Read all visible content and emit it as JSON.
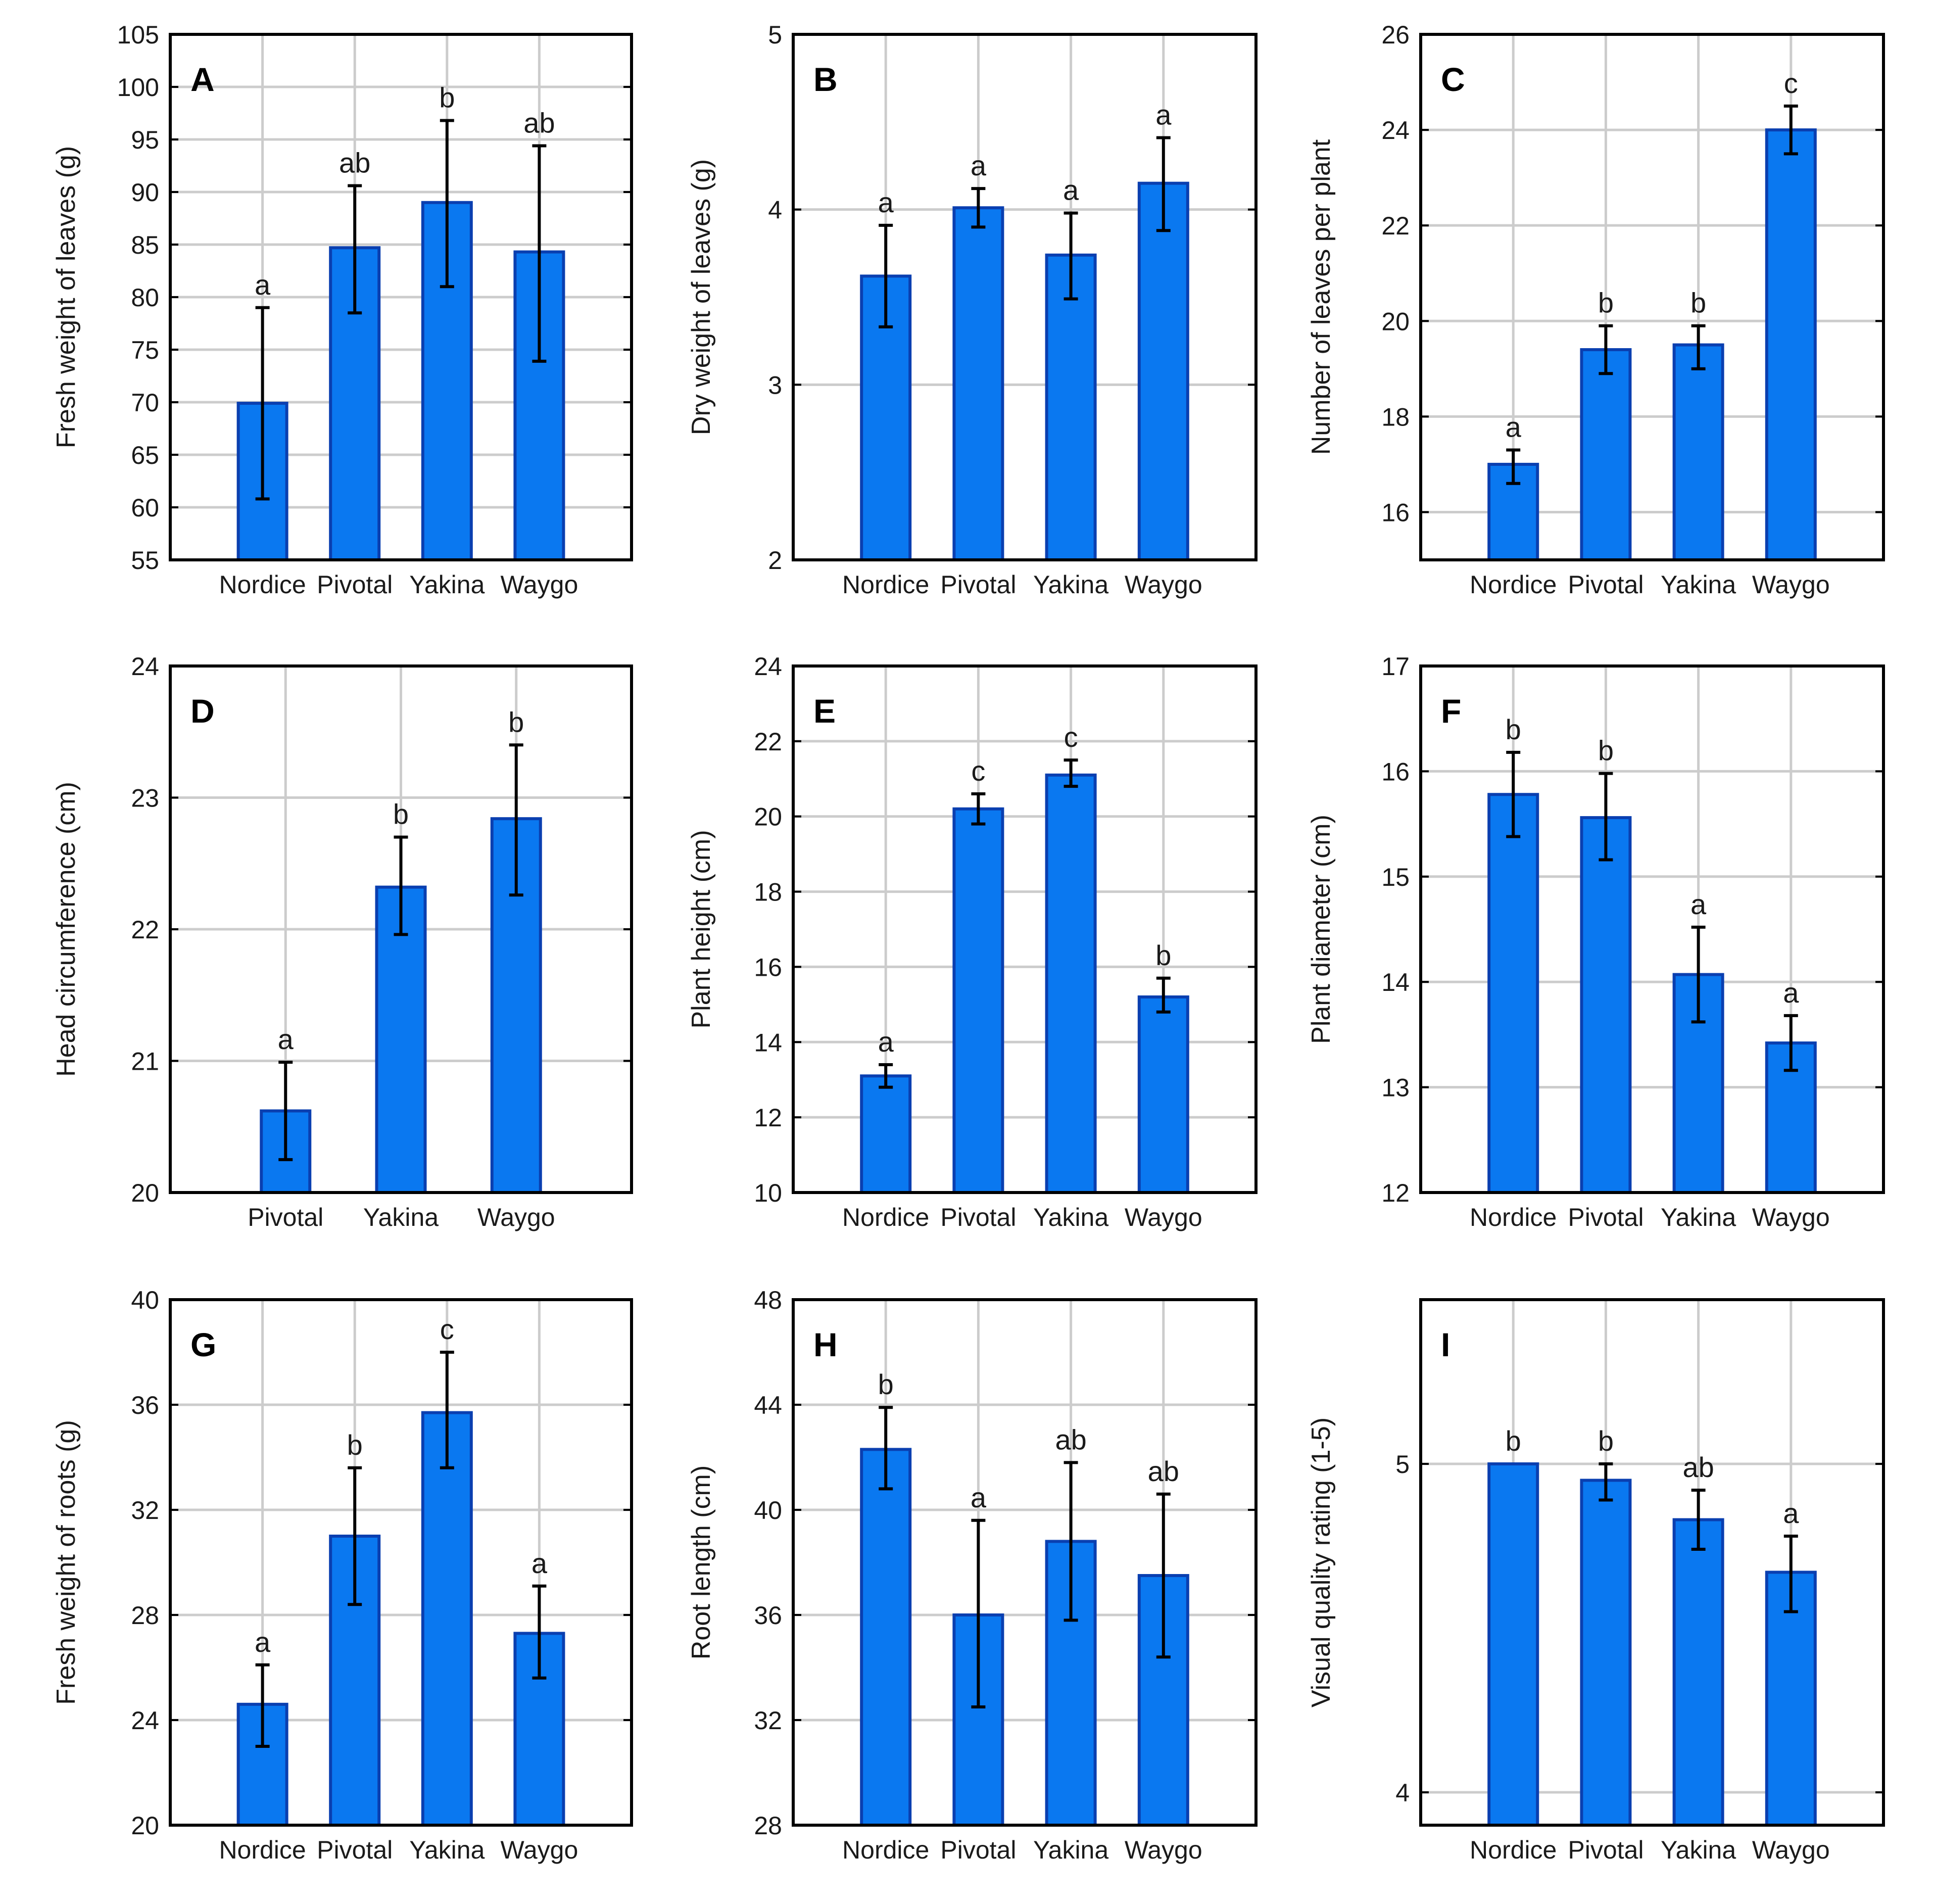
{
  "colors": {
    "bar_fill": "#0a78f0",
    "bar_edge": "#0a3fb0",
    "grid": "#cccccc",
    "axis": "#000000",
    "error": "#000000"
  },
  "chart_data": [
    {
      "type": "bar",
      "panel": "A",
      "ylabel": "Fresh weight of leaves (g)",
      "categories": [
        "Nordice",
        "Pivotal",
        "Yakina",
        "Waygo"
      ],
      "values": [
        69.9,
        84.7,
        89.0,
        84.3
      ],
      "error_low": [
        60.8,
        78.5,
        81.0,
        73.9
      ],
      "error_high": [
        79.0,
        90.6,
        96.8,
        94.4
      ],
      "letters": [
        "a",
        "ab",
        "b",
        "ab"
      ],
      "ylim": [
        55,
        105
      ],
      "yticks": [
        55,
        60,
        65,
        70,
        75,
        80,
        85,
        90,
        95,
        100,
        105
      ],
      "grid": true
    },
    {
      "type": "bar",
      "panel": "B",
      "ylabel": "Dry weight of leaves (g)",
      "categories": [
        "Nordice",
        "Pivotal",
        "Yakina",
        "Waygo"
      ],
      "values": [
        3.62,
        4.01,
        3.74,
        4.15
      ],
      "error_low": [
        3.33,
        3.9,
        3.49,
        3.88
      ],
      "error_high": [
        3.91,
        4.12,
        3.98,
        4.41
      ],
      "letters": [
        "a",
        "a",
        "a",
        "a"
      ],
      "ylim": [
        2,
        5
      ],
      "yticks": [
        2,
        3,
        4,
        5
      ],
      "grid": true
    },
    {
      "type": "bar",
      "panel": "C",
      "ylabel": "Number of leaves per plant",
      "categories": [
        "Nordice",
        "Pivotal",
        "Yakina",
        "Waygo"
      ],
      "values": [
        17.0,
        19.4,
        19.5,
        24.0
      ],
      "error_low": [
        16.6,
        18.9,
        19.0,
        23.5
      ],
      "error_high": [
        17.3,
        19.9,
        19.9,
        24.5
      ],
      "letters": [
        "a",
        "b",
        "b",
        "c"
      ],
      "ylim": [
        15,
        26
      ],
      "yticks": [
        16,
        18,
        20,
        22,
        24,
        26
      ],
      "grid": true
    },
    {
      "type": "bar",
      "panel": "D",
      "ylabel": "Head circumference (cm)",
      "categories": [
        "Pivotal",
        "Yakina",
        "Waygo"
      ],
      "values": [
        20.62,
        22.32,
        22.84
      ],
      "error_low": [
        20.25,
        21.96,
        22.26
      ],
      "error_high": [
        20.99,
        22.7,
        23.4
      ],
      "letters": [
        "a",
        "b",
        "b"
      ],
      "ylim": [
        20,
        24
      ],
      "yticks": [
        20,
        21,
        22,
        23,
        24
      ],
      "grid": true
    },
    {
      "type": "bar",
      "panel": "E",
      "ylabel": "Plant height (cm)",
      "categories": [
        "Nordice",
        "Pivotal",
        "Yakina",
        "Waygo"
      ],
      "values": [
        13.1,
        20.2,
        21.1,
        15.2
      ],
      "error_low": [
        12.8,
        19.8,
        20.8,
        14.8
      ],
      "error_high": [
        13.4,
        20.6,
        21.5,
        15.7
      ],
      "letters": [
        "a",
        "c",
        "c",
        "b"
      ],
      "ylim": [
        10,
        24
      ],
      "yticks": [
        10,
        12,
        14,
        16,
        18,
        20,
        22,
        24
      ],
      "grid": true
    },
    {
      "type": "bar",
      "panel": "F",
      "ylabel": "Plant diameter (cm)",
      "categories": [
        "Nordice",
        "Pivotal",
        "Yakina",
        "Waygo"
      ],
      "values": [
        15.78,
        15.56,
        14.07,
        13.42
      ],
      "error_low": [
        15.38,
        15.16,
        13.62,
        13.16
      ],
      "error_high": [
        16.18,
        15.98,
        14.52,
        13.68
      ],
      "letters": [
        "b",
        "b",
        "a",
        "a"
      ],
      "ylim": [
        12,
        17
      ],
      "yticks": [
        12,
        13,
        14,
        15,
        16,
        17
      ],
      "grid": true
    },
    {
      "type": "bar",
      "panel": "G",
      "ylabel": "Fresh weight of roots (g)",
      "categories": [
        "Nordice",
        "Pivotal",
        "Yakina",
        "Waygo"
      ],
      "values": [
        24.6,
        31.0,
        35.7,
        27.3
      ],
      "error_low": [
        23.0,
        28.4,
        33.6,
        25.6
      ],
      "error_high": [
        26.1,
        33.6,
        38.0,
        29.1
      ],
      "letters": [
        "a",
        "b",
        "c",
        "a"
      ],
      "ylim": [
        20,
        40
      ],
      "yticks": [
        20,
        24,
        28,
        32,
        36,
        40
      ],
      "grid": true
    },
    {
      "type": "bar",
      "panel": "H",
      "ylabel": "Root length (cm)",
      "categories": [
        "Nordice",
        "Pivotal",
        "Yakina",
        "Waygo"
      ],
      "values": [
        42.3,
        36.0,
        38.8,
        37.5
      ],
      "error_low": [
        40.8,
        32.5,
        35.8,
        34.4
      ],
      "error_high": [
        43.9,
        39.6,
        41.8,
        40.6
      ],
      "letters": [
        "b",
        "a",
        "ab",
        "ab"
      ],
      "ylim": [
        28,
        48
      ],
      "yticks": [
        28,
        32,
        36,
        40,
        44,
        48
      ],
      "grid": true
    },
    {
      "type": "bar",
      "panel": "I",
      "ylabel": "Visual quality rating (1-5)",
      "categories": [
        "Nordice",
        "Pivotal",
        "Yakina",
        "Waygo"
      ],
      "values": [
        5.0,
        4.95,
        4.83,
        4.67
      ],
      "error_low": [
        5.0,
        4.89,
        4.74,
        4.55
      ],
      "error_high": [
        5.0,
        5.0,
        4.92,
        4.78
      ],
      "letters": [
        "b",
        "b",
        "ab",
        "a"
      ],
      "ylim": [
        3.9,
        5.5
      ],
      "yticks": [
        4,
        5
      ],
      "grid": true
    }
  ]
}
